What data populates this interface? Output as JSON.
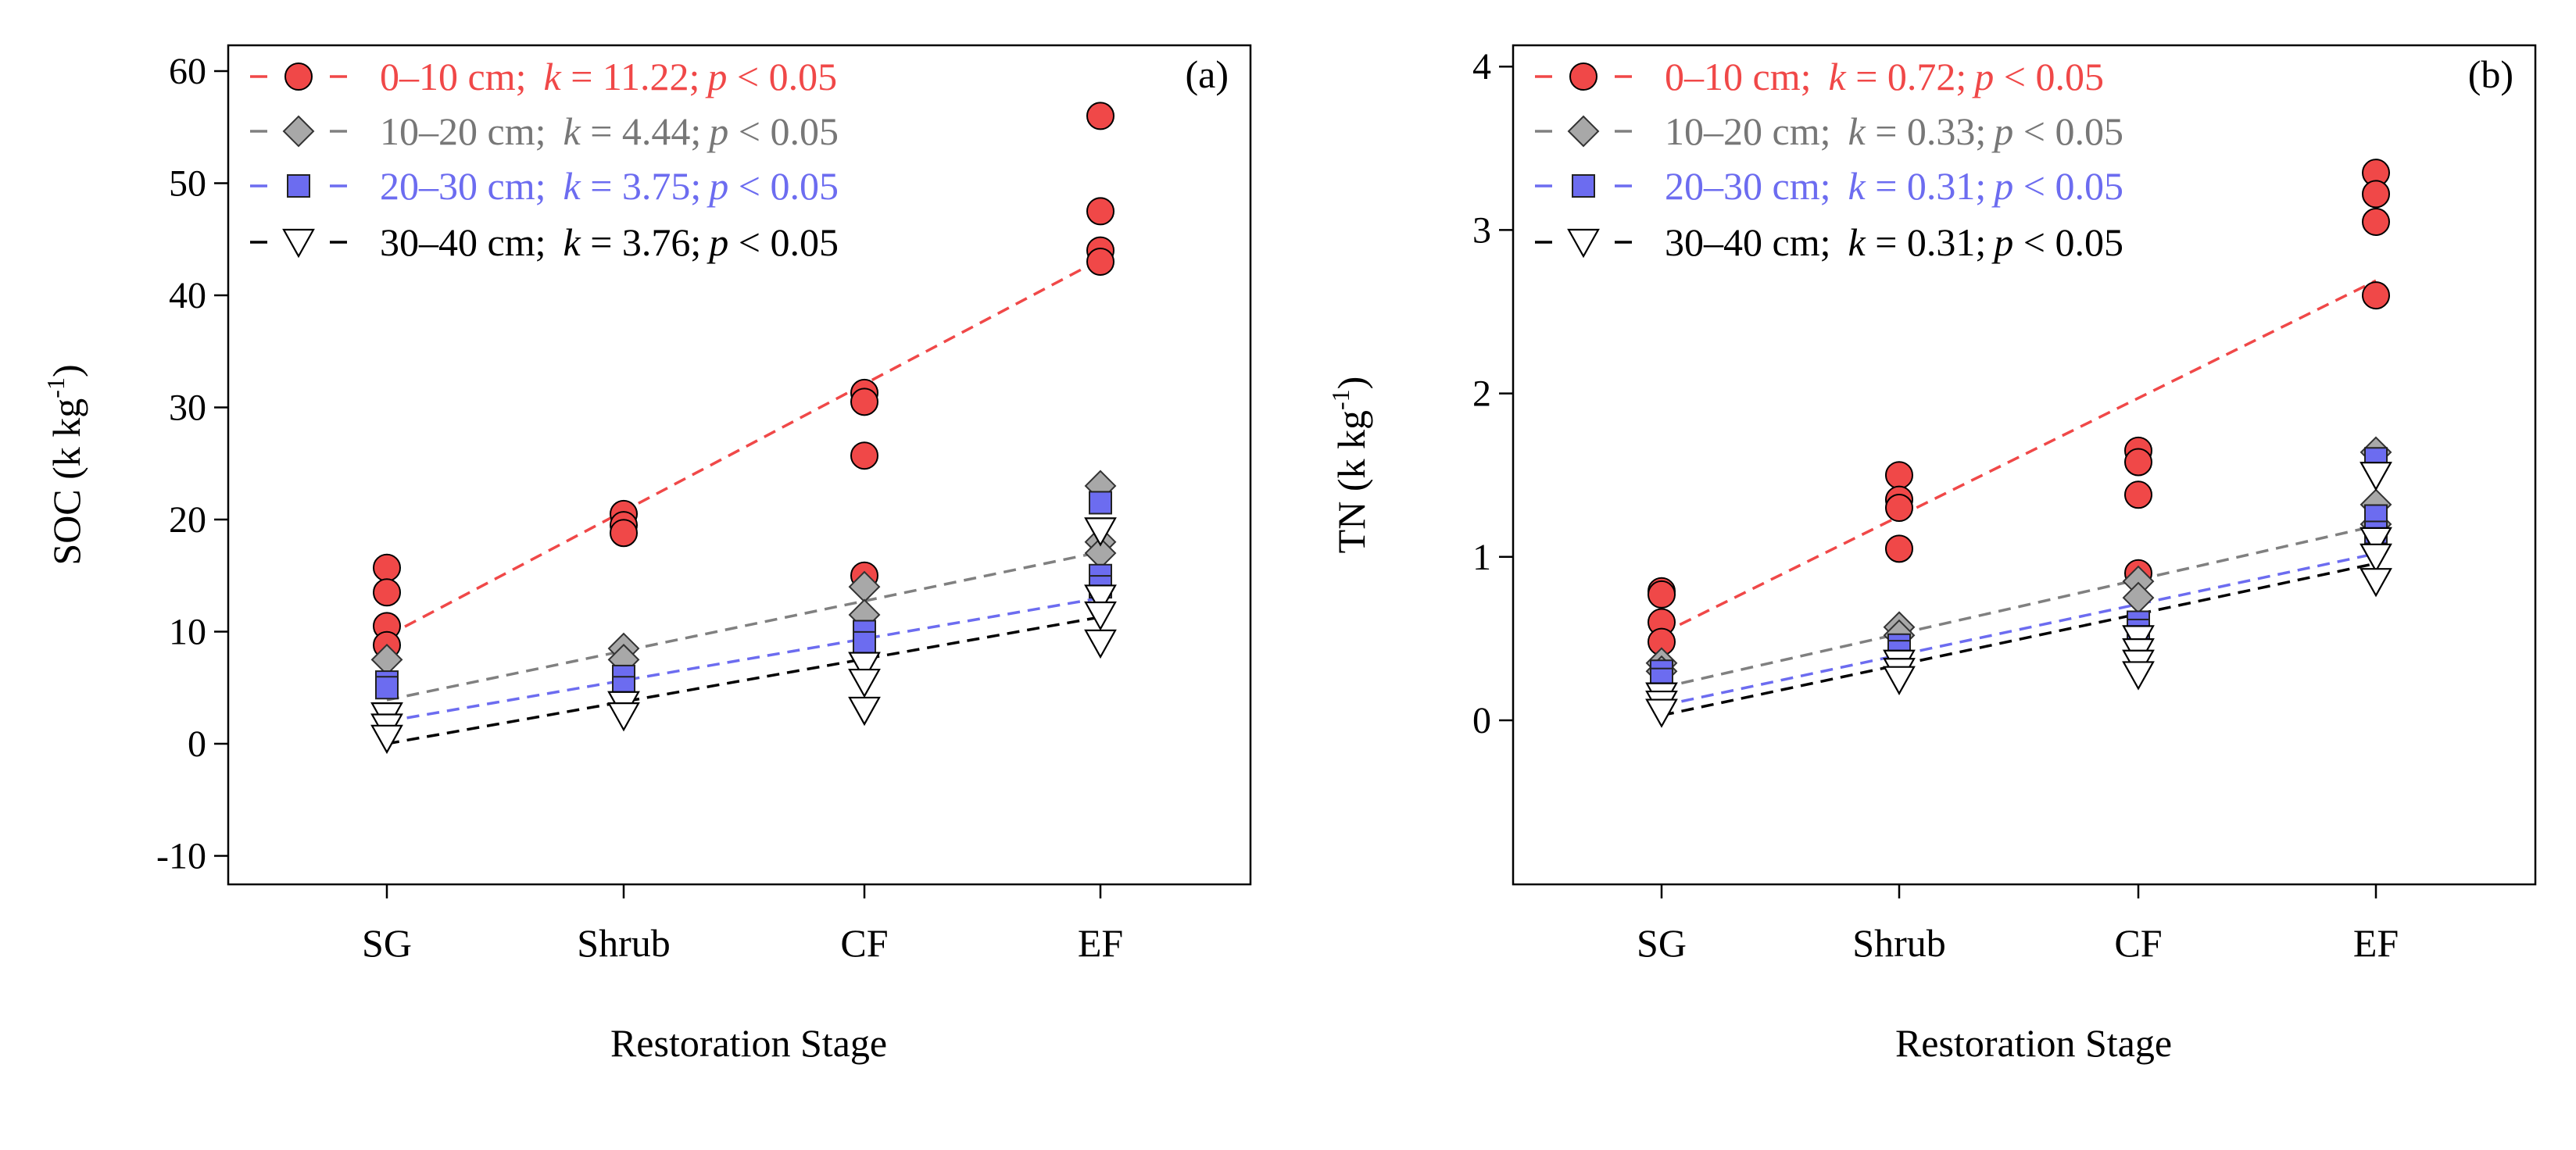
{
  "chart_data": [
    {
      "panel": "(a)",
      "type": "scatter",
      "categories": [
        "SG",
        "Shrub",
        "CF",
        "EF"
      ],
      "xlabel": "Restoration Stage",
      "ylabel_main": "SOC (k kg",
      "ylabel_sup": "-1",
      "ylabel_close": ")",
      "ylim": [
        -13,
        60
      ],
      "yticks": [
        "-10",
        "0",
        "10",
        "20",
        "30",
        "40",
        "50",
        "60"
      ],
      "series": [
        {
          "name": "0–10 cm;",
          "k_text": "k",
          "k_value": " = 11.22;",
          "p_text": "p",
          "p_value": " < 0.05",
          "color": "#f04848",
          "marker": "circle",
          "points": [
            [
              1,
              15.7
            ],
            [
              1,
              13.5
            ],
            [
              1,
              10.5
            ],
            [
              1,
              8.8
            ],
            [
              2,
              20.5
            ],
            [
              2,
              19.5
            ],
            [
              2,
              18.8
            ],
            [
              3,
              31.3
            ],
            [
              3,
              30.5
            ],
            [
              3,
              25.7
            ],
            [
              3,
              15
            ],
            [
              4,
              56
            ],
            [
              4,
              47.5
            ],
            [
              4,
              44
            ],
            [
              4,
              43
            ]
          ],
          "fit": [
            [
              1,
              9.6
            ],
            [
              4,
              43.2
            ]
          ]
        },
        {
          "name": "10–20 cm;",
          "k_text": "k",
          "k_value": " = 4.44;",
          "p_text": "p",
          "p_value": " < 0.05",
          "color": "#808080",
          "marker": "diamond",
          "points": [
            [
              1,
              7.5
            ],
            [
              2,
              8.5
            ],
            [
              2,
              7.5
            ],
            [
              3,
              14
            ],
            [
              3,
              11.5
            ],
            [
              4,
              23
            ],
            [
              4,
              18
            ],
            [
              4,
              17
            ]
          ],
          "fit": [
            [
              1,
              3.9
            ],
            [
              4,
              17.1
            ]
          ]
        },
        {
          "name": "20–30 cm;",
          "k_text": "k",
          "k_value": " = 3.75;",
          "p_text": "p",
          "p_value": " < 0.05",
          "color": "#6c6cf0",
          "marker": "square",
          "points": [
            [
              1,
              5.5
            ],
            [
              1,
              5
            ],
            [
              2,
              6
            ],
            [
              2,
              5
            ],
            [
              3,
              10
            ],
            [
              3,
              9
            ],
            [
              4,
              21.5
            ],
            [
              4,
              15
            ],
            [
              4,
              14
            ]
          ],
          "fit": [
            [
              1,
              2
            ],
            [
              4,
              13
            ]
          ]
        },
        {
          "name": "30–40 cm;",
          "k_text": "k",
          "k_value": " = 3.76;",
          "p_text": "p",
          "p_value": " < 0.05",
          "color": "#000000",
          "marker": "triangle-down",
          "points": [
            [
              1,
              2.5
            ],
            [
              1,
              1.5
            ],
            [
              1,
              0.5
            ],
            [
              2,
              3.5
            ],
            [
              2,
              2.5
            ],
            [
              3,
              7
            ],
            [
              3,
              5.5
            ],
            [
              3,
              3
            ],
            [
              4,
              19
            ],
            [
              4,
              13
            ],
            [
              4,
              11.5
            ],
            [
              4,
              9
            ]
          ],
          "fit": [
            [
              1,
              0
            ],
            [
              4,
              11.3
            ]
          ]
        }
      ]
    },
    {
      "panel": "(b)",
      "type": "scatter",
      "categories": [
        "SG",
        "Shrub",
        "CF",
        "EF"
      ],
      "xlabel": "Restoration Stage",
      "ylabel_main": "TN (k kg",
      "ylabel_sup": "-1",
      "ylabel_close": ")",
      "ylim": [
        -1,
        4
      ],
      "yticks": [
        "0",
        "1",
        "2",
        "3",
        "4"
      ],
      "series": [
        {
          "name": "0–10 cm;",
          "k_text": "k",
          "k_value": " = 0.72;",
          "p_text": "p",
          "p_value": " < 0.05",
          "color": "#f04848",
          "marker": "circle",
          "points": [
            [
              1,
              0.79
            ],
            [
              1,
              0.77
            ],
            [
              1,
              0.6
            ],
            [
              1,
              0.48
            ],
            [
              2,
              1.5
            ],
            [
              2,
              1.35
            ],
            [
              2,
              1.3
            ],
            [
              2,
              1.05
            ],
            [
              3,
              1.65
            ],
            [
              3,
              1.58
            ],
            [
              3,
              1.38
            ],
            [
              3,
              0.9
            ],
            [
              4,
              3.35
            ],
            [
              4,
              3.22
            ],
            [
              4,
              3.05
            ],
            [
              4,
              2.6
            ]
          ],
          "fit": [
            [
              1,
              0.53
            ],
            [
              4,
              2.69
            ]
          ]
        },
        {
          "name": "10–20 cm;",
          "k_text": "k",
          "k_value": " = 0.33;",
          "p_text": "p",
          "p_value": " < 0.05",
          "color": "#808080",
          "marker": "diamond",
          "points": [
            [
              1,
              0.35
            ],
            [
              1,
              0.3
            ],
            [
              2,
              0.57
            ],
            [
              2,
              0.52
            ],
            [
              3,
              0.85
            ],
            [
              3,
              0.75
            ],
            [
              4,
              1.64
            ],
            [
              4,
              1.32
            ],
            [
              4,
              1.2
            ]
          ],
          "fit": [
            [
              1,
              0.2
            ],
            [
              4,
              1.19
            ]
          ]
        },
        {
          "name": "20–30 cm;",
          "k_text": "k",
          "k_value": " = 0.31;",
          "p_text": "p",
          "p_value": " < 0.05",
          "color": "#6c6cf0",
          "marker": "square",
          "points": [
            [
              1,
              0.3
            ],
            [
              1,
              0.25
            ],
            [
              2,
              0.46
            ],
            [
              2,
              0.42
            ],
            [
              3,
              0.6
            ],
            [
              3,
              0.55
            ],
            [
              4,
              1.6
            ],
            [
              4,
              1.25
            ],
            [
              4,
              1.15
            ]
          ],
          "fit": [
            [
              1,
              0.09
            ],
            [
              4,
              1.02
            ]
          ]
        },
        {
          "name": "30–40 cm;",
          "k_text": "k",
          "k_value": " = 0.31;",
          "p_text": "p",
          "p_value": " < 0.05",
          "color": "#000000",
          "marker": "triangle-down",
          "points": [
            [
              1,
              0.15
            ],
            [
              1,
              0.1
            ],
            [
              1,
              0.05
            ],
            [
              2,
              0.35
            ],
            [
              2,
              0.3
            ],
            [
              2,
              0.25
            ],
            [
              3,
              0.5
            ],
            [
              3,
              0.42
            ],
            [
              3,
              0.35
            ],
            [
              3,
              0.28
            ],
            [
              4,
              1.5
            ],
            [
              4,
              1.1
            ],
            [
              4,
              1.0
            ],
            [
              4,
              0.85
            ]
          ],
          "fit": [
            [
              1,
              0.03
            ],
            [
              4,
              0.96
            ]
          ]
        }
      ]
    }
  ]
}
